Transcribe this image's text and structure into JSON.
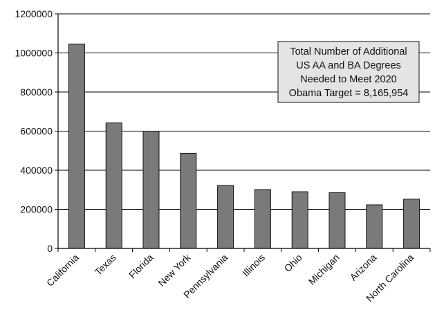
{
  "chart_data": {
    "type": "bar",
    "categories": [
      "California",
      "Texas",
      "Florida",
      "New York",
      "Pennsylvania",
      "Illinois",
      "Ohio",
      "Michigan",
      "Arizona",
      "North Carolina"
    ],
    "values": [
      1045000,
      642000,
      600000,
      487000,
      322000,
      301000,
      290000,
      285000,
      223000,
      252000
    ],
    "ylim": [
      0,
      1200000
    ],
    "yticks": [
      0,
      200000,
      400000,
      600000,
      800000,
      1000000,
      1200000
    ],
    "grid": true,
    "legend": null,
    "annotation": {
      "lines": [
        "Total Number of Additional",
        "US AA and BA Degrees",
        "Needed to Meet 2020",
        "Obama Target = 8,165,954"
      ],
      "placement": "upper-right"
    },
    "colors": {
      "bar_fill": "#7a7a7a",
      "bar_stroke": "#111111",
      "grid": "#000000",
      "annotation_fill": "#e4e4e4"
    }
  }
}
